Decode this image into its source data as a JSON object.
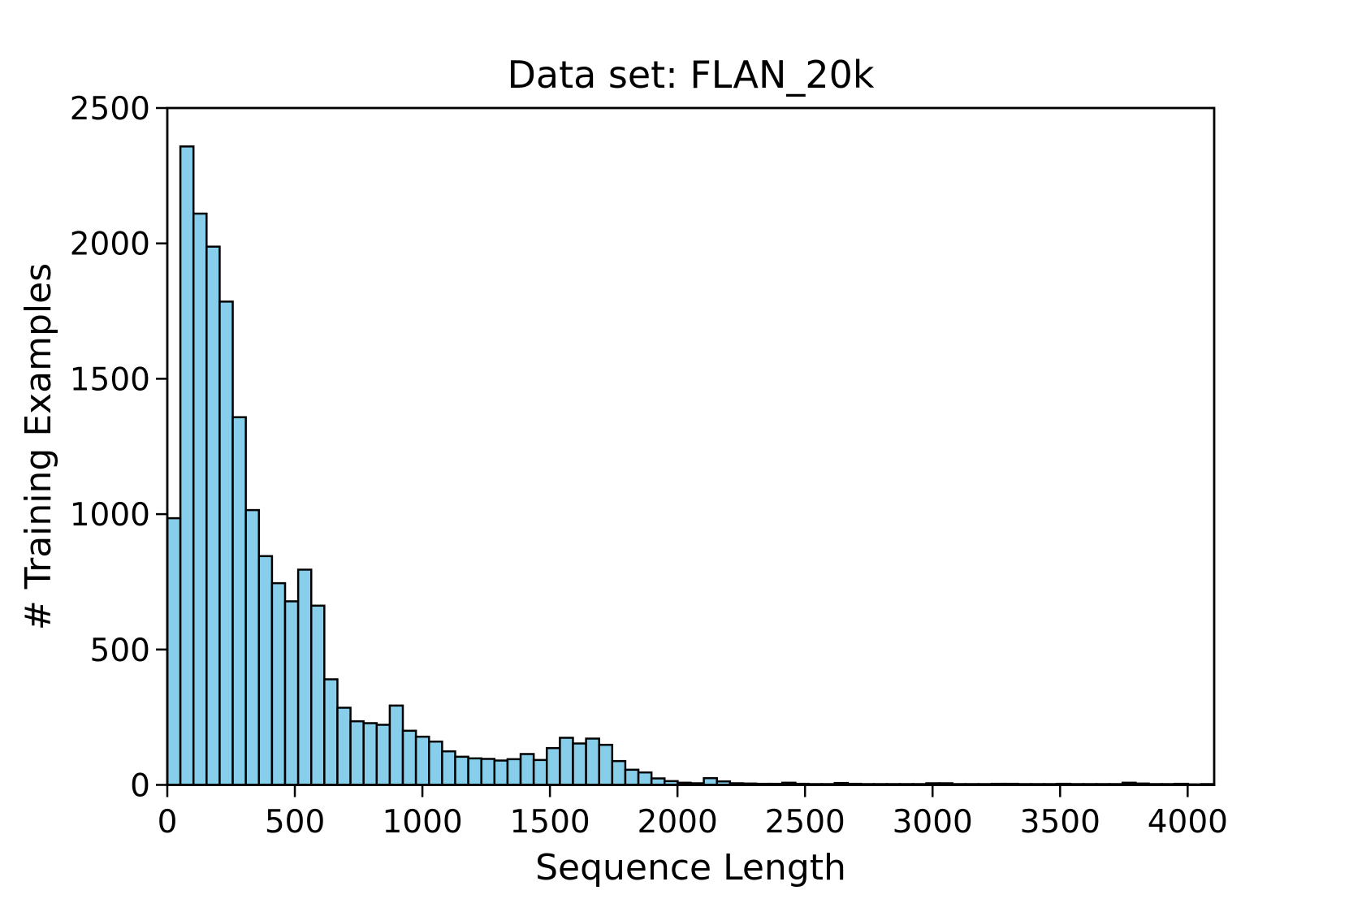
{
  "chart_data": {
    "type": "bar",
    "subtype": "histogram",
    "title": "Data set: FLAN_20k",
    "xlabel": "Sequence Length",
    "ylabel": "# Training Examples",
    "xlim": [
      0,
      4104
    ],
    "ylim": [
      0,
      2500
    ],
    "x_ticks": [
      0,
      500,
      1000,
      1500,
      2000,
      2500,
      3000,
      3500,
      4000
    ],
    "y_ticks": [
      0,
      500,
      1000,
      1500,
      2000,
      2500
    ],
    "grid": false,
    "legend": "none",
    "bin_start": 0,
    "bin_width": 51.3,
    "bar_color": "#87CEEB",
    "bar_edge_color": "#000000",
    "axis_color": "#000000",
    "values": [
      985,
      2358,
      2110,
      1988,
      1785,
      1358,
      1015,
      845,
      745,
      678,
      795,
      662,
      390,
      285,
      235,
      228,
      222,
      293,
      200,
      178,
      160,
      124,
      104,
      98,
      96,
      90,
      95,
      114,
      92,
      136,
      174,
      153,
      171,
      148,
      88,
      56,
      46,
      24,
      14,
      8,
      6,
      25,
      13,
      6,
      5,
      4,
      4,
      8,
      4,
      3,
      3,
      7,
      4,
      3,
      3,
      3,
      3,
      3,
      6,
      6,
      3,
      3,
      3,
      4,
      4,
      3,
      3,
      3,
      4,
      3,
      3,
      3,
      3,
      8,
      5,
      3,
      3,
      4,
      2,
      3
    ]
  }
}
